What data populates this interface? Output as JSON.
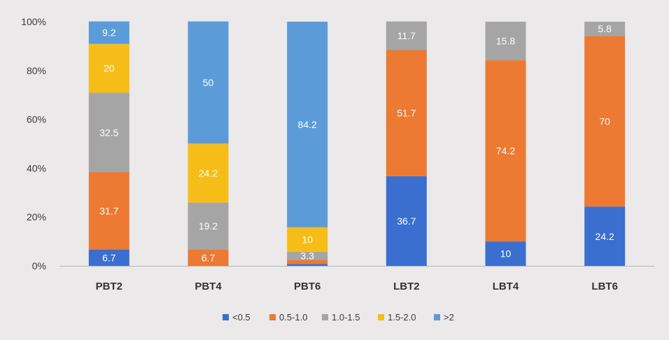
{
  "chart_data": {
    "type": "bar",
    "stacked": true,
    "normalized": true,
    "categories": [
      "PBT2",
      "PBT4",
      "PBT6",
      "LBT2",
      "LBT4",
      "LBT6"
    ],
    "series": [
      {
        "name": "<0.5",
        "color": "#3a6fd0",
        "values": [
          6.7,
          0,
          0.8,
          36.7,
          10,
          24.2
        ],
        "labels": [
          "6.7",
          "",
          "",
          "36.7",
          "10",
          "24.2"
        ]
      },
      {
        "name": "0.5-1.0",
        "color": "#ec7a32",
        "values": [
          31.7,
          6.7,
          1.7,
          51.7,
          74.2,
          70
        ],
        "labels": [
          "31.7",
          "6.7",
          "",
          "51.7",
          "74.2",
          "70"
        ]
      },
      {
        "name": "1.0-1.5",
        "color": "#a5a5a5",
        "values": [
          32.5,
          19.2,
          3.3,
          11.7,
          15.8,
          5.8
        ],
        "labels": [
          "32.5",
          "19.2",
          "3.3",
          "11.7",
          "15.8",
          "5.8"
        ]
      },
      {
        "name": "1.5-2.0",
        "color": "#f6bd19",
        "values": [
          20,
          24.2,
          10,
          0,
          0,
          0
        ],
        "labels": [
          "20",
          "24.2",
          "10",
          "",
          "",
          ""
        ]
      },
      {
        "name": ">2",
        "color": "#5b9bd8",
        "values": [
          9.2,
          50,
          84.2,
          0,
          0,
          0
        ],
        "labels": [
          "9.2",
          "50",
          "84.2",
          "",
          "",
          ""
        ]
      }
    ],
    "yticks": [
      "0%",
      "20%",
      "40%",
      "60%",
      "80%",
      "100%"
    ],
    "ylim": [
      0,
      100
    ],
    "legend_position": "bottom"
  }
}
